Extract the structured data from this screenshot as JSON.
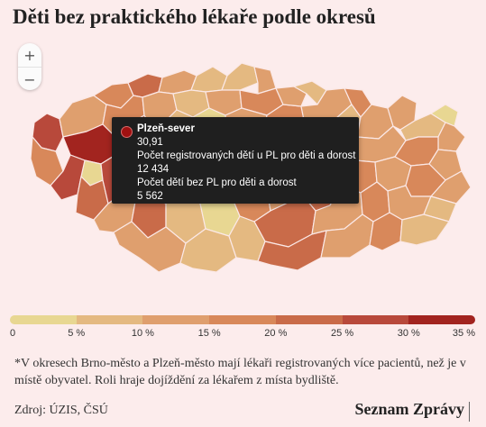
{
  "title": "Děti bez praktického lékaře podle okresů",
  "zoom": {
    "in_label": "+",
    "out_label": "−"
  },
  "tooltip": {
    "name": "Plzeň-sever",
    "value": "30,91",
    "label1": "Počet registrovaných dětí u PL pro děti a dorost",
    "value1": "12 434",
    "label2": "Počet dětí bez PL pro děti a dorost",
    "value2": "5 562",
    "color": "#a01111"
  },
  "legend": {
    "colors": [
      "#e8d792",
      "#e4b981",
      "#df9f6e",
      "#d8885a",
      "#c96b49",
      "#b8493b",
      "#a2241f"
    ],
    "ticks": [
      "0",
      "5 %",
      "10 %",
      "15 %",
      "20 %",
      "25 %",
      "30 %",
      "35 %"
    ]
  },
  "note": "*V okresech Brno-město a Plzeň-město mají lékaři registrovaných více pacientů, než je v místě obyvatel. Roli hraje dojíždění za lékařem z místa bydliště.",
  "source": "Zdroj: ÚZIS, ČSÚ",
  "brand": "Seznam Zprávy"
}
